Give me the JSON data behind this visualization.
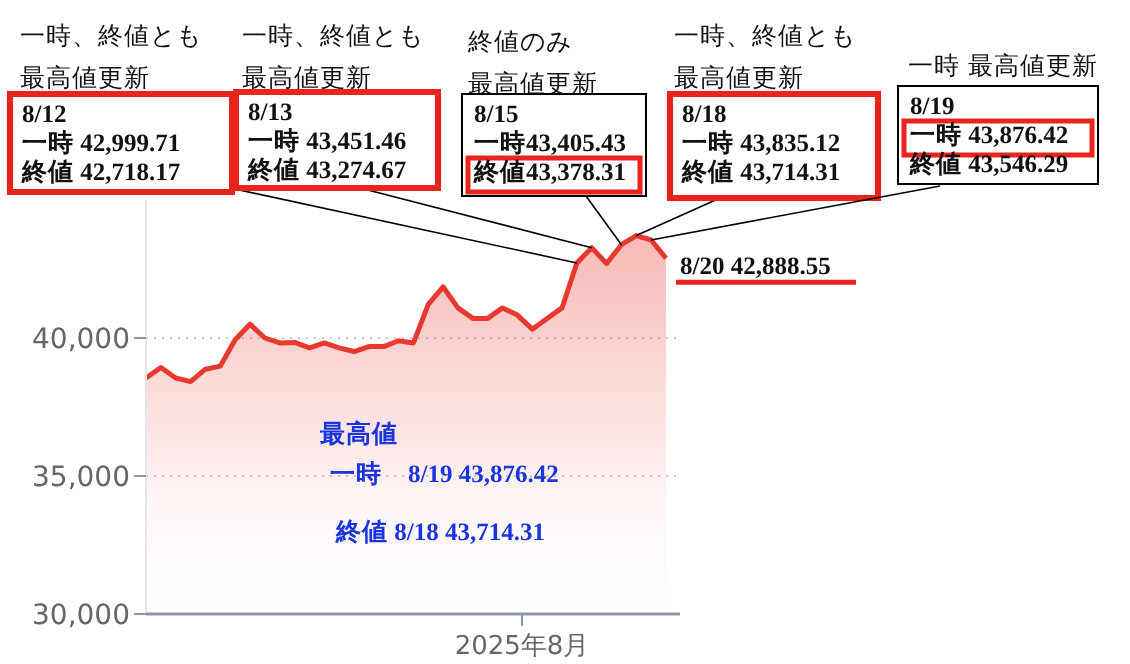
{
  "chart_data": {
    "type": "area",
    "categories": [
      null,
      null,
      null,
      null,
      null,
      null,
      null,
      null,
      null,
      null,
      null,
      null,
      null,
      null,
      null,
      null,
      null,
      null,
      null,
      null,
      null,
      null,
      null,
      null,
      null,
      null,
      null,
      null,
      null,
      null,
      null,
      null,
      null,
      null,
      null,
      null
    ],
    "series": [
      {
        "color": "#e8392f",
        "values": [
          38550,
          38930,
          38550,
          38420,
          38870,
          38980,
          39940,
          40500,
          40000,
          39820,
          39840,
          39640,
          39820,
          39640,
          39510,
          39690,
          39690,
          39900,
          39820,
          41220,
          41850,
          41090,
          40710,
          40710,
          41090,
          40830,
          40320,
          40710,
          41090,
          42720,
          43270,
          42700,
          43380,
          43710,
          43550,
          42890
        ]
      }
    ],
    "ylim": [
      30000,
      45000
    ],
    "yticks": [
      {
        "value": 30000,
        "label": "30,000"
      },
      {
        "value": 35000,
        "label": "35,000"
      },
      {
        "value": 40000,
        "label": "40,000"
      }
    ],
    "grid": "y",
    "annotations": [
      "一時、終値とも最高値更新",
      "8/12\n一時 42,999.71\n終値 42,718.17",
      "一時、終値とも最高値更新",
      "8/13\n一時 43,451.46\n終値 43,274.67",
      "終値のみ最高値更新",
      "8/15\n一時43,405.43\n終値43,378.31",
      "一時、終値とも最高値更新",
      "8/18\n一時 43,835.12\n終値 43,714.31",
      "一時 最高値更新",
      "8/19\n一時 43,876.42\n終値 43,546.29",
      "8/20 42,888.55",
      "最高値",
      "一時　8/19 43,876.42",
      "終値 8/18 43,714.31",
      "2025年8月"
    ]
  }
}
